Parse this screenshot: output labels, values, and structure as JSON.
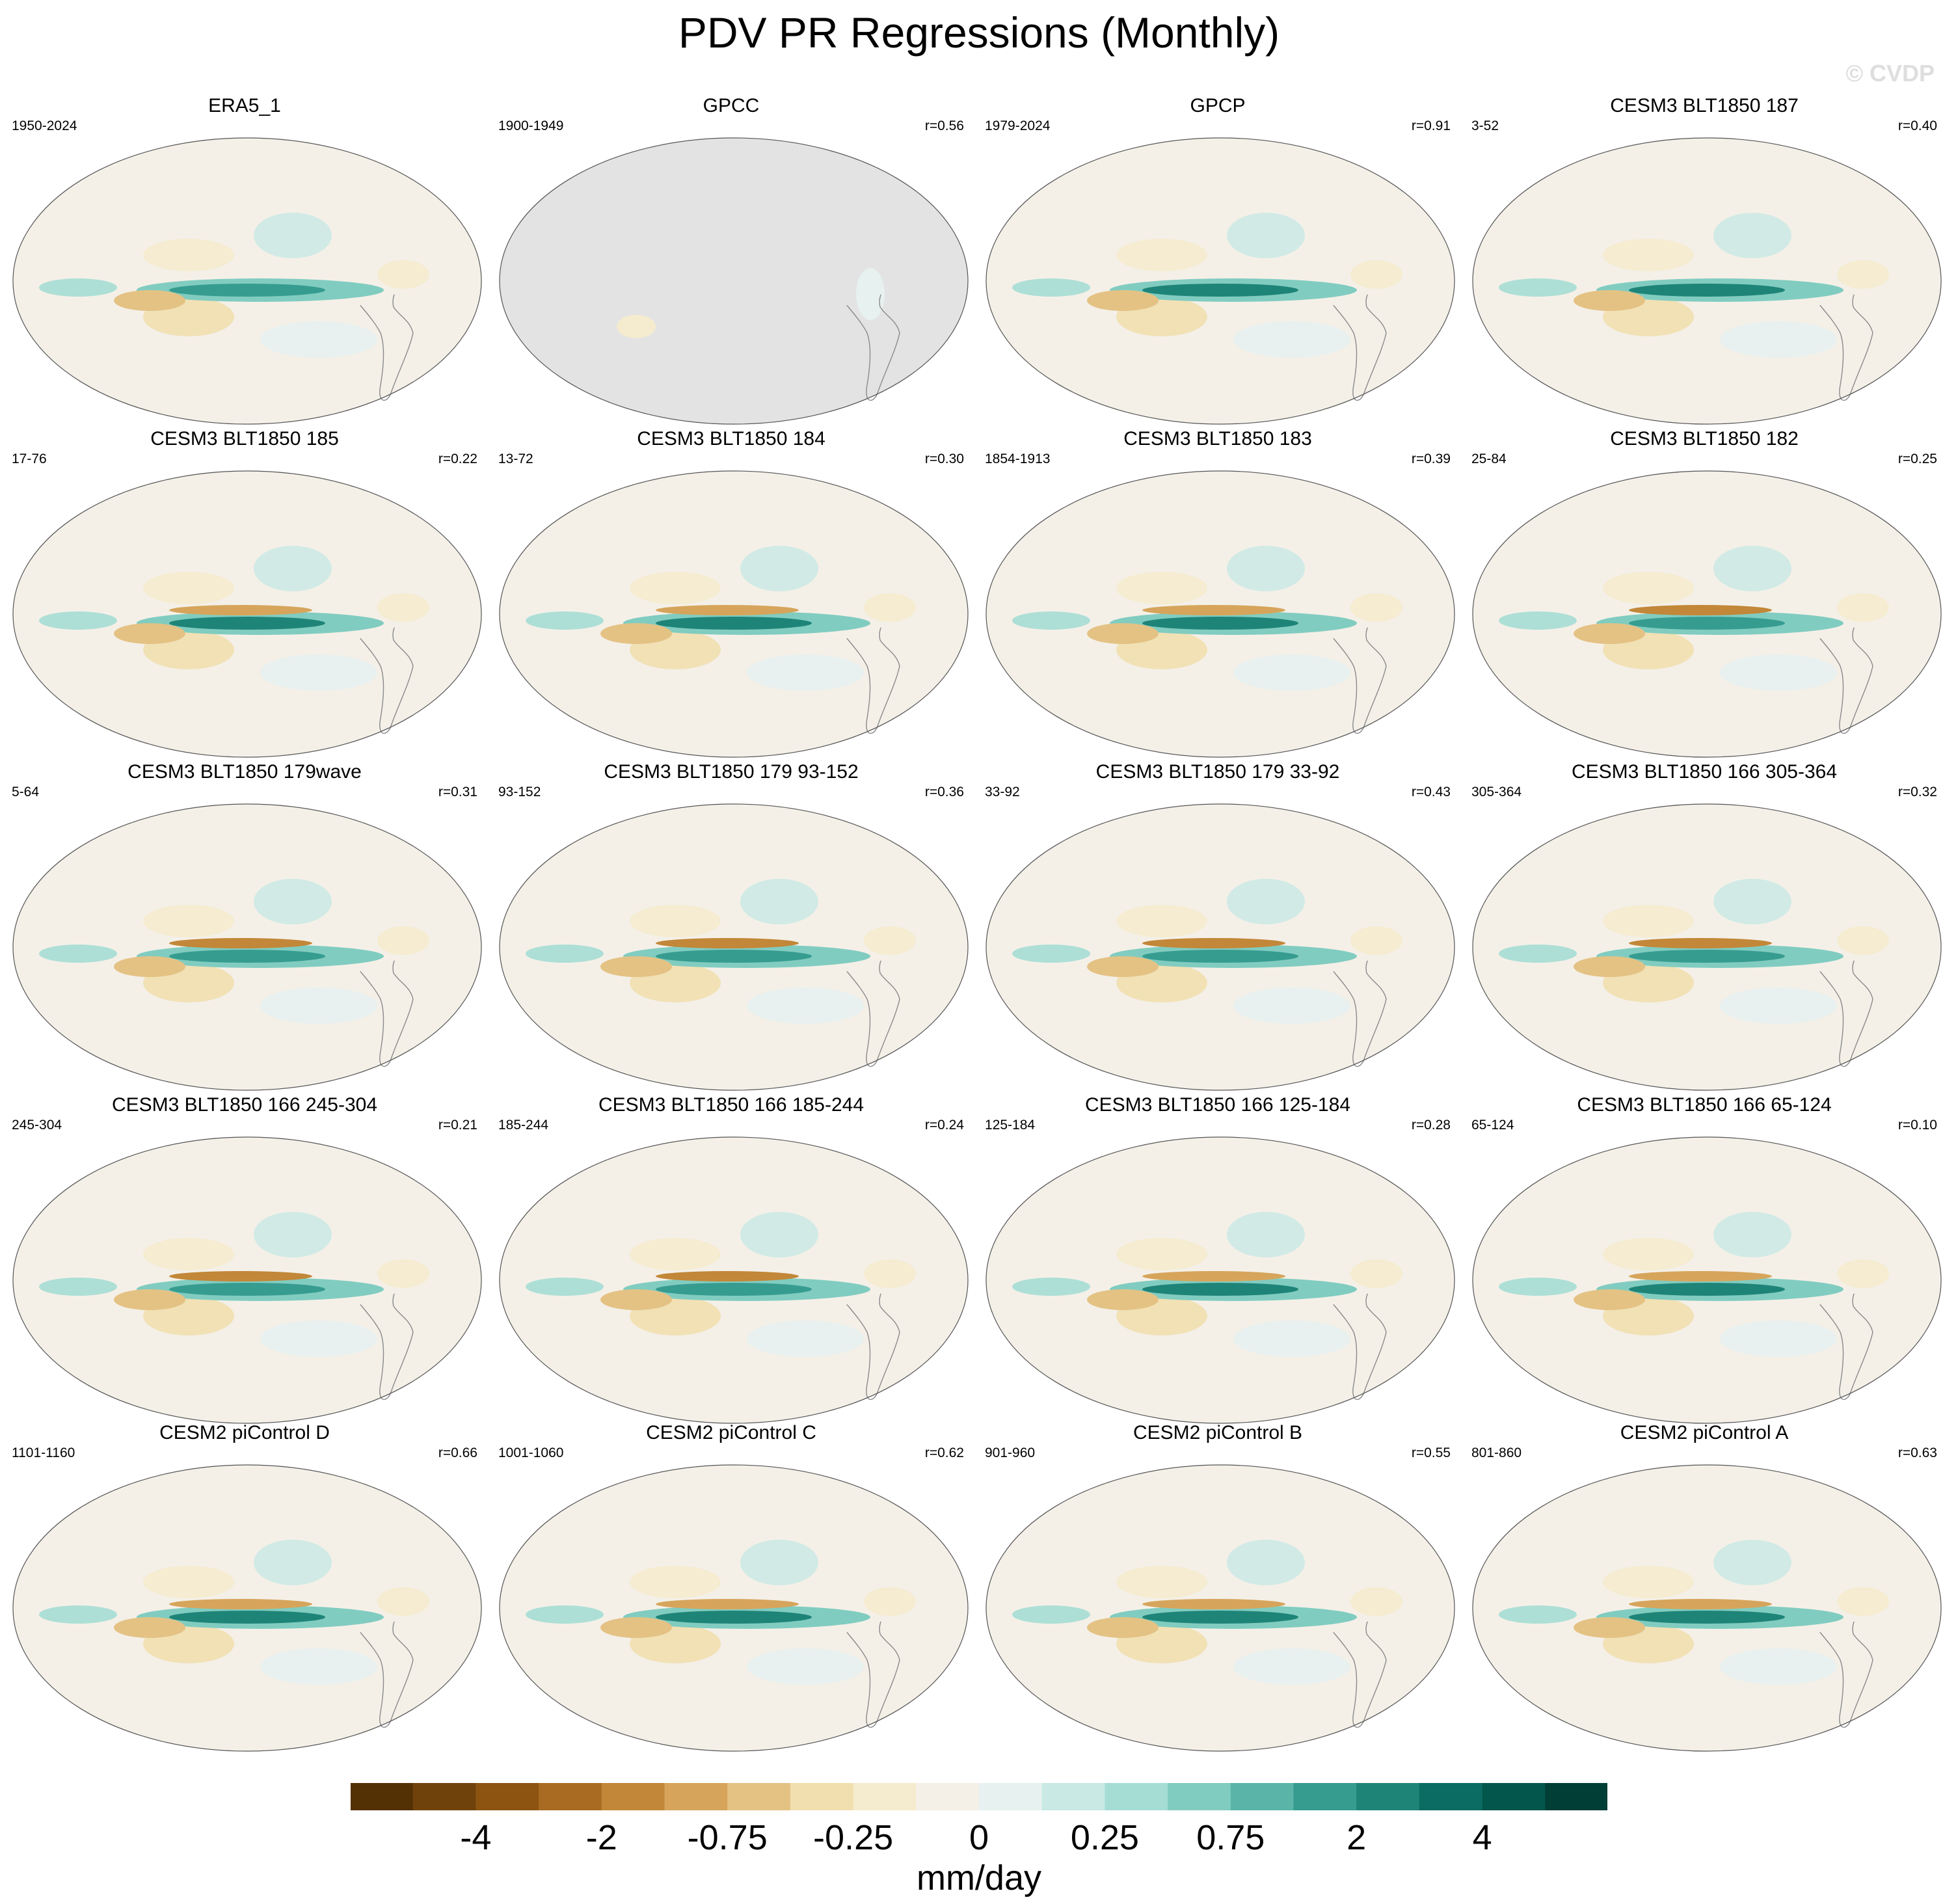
{
  "title": "PDV PR Regressions (Monthly)",
  "watermark": "© CVDP",
  "colors": {
    "ocean_missing": "#e3e3e3",
    "coast": "#8a8a8a",
    "palette": [
      "#543005",
      "#70420b",
      "#8c5410",
      "#a96b22",
      "#c28738",
      "#d6a55b",
      "#e4c284",
      "#f1dfaf",
      "#f5ebce",
      "#f4f0e8",
      "#e7f1ef",
      "#c8e9e4",
      "#a5ddd4",
      "#81ccc0",
      "#5ab5a8",
      "#379c90",
      "#1f8478",
      "#0a6c62",
      "#03564c",
      "#013e35"
    ]
  },
  "chart_data": {
    "type": "heatmap",
    "title": "PDV PR Regressions (Monthly)",
    "projection": "Robinson-like, Pacific-centered",
    "field": "precipitation regression on PDV index",
    "colorbar": {
      "units": "mm/day",
      "tick_labels": [
        "-4",
        "-2",
        "-0.75",
        "-0.25",
        "0",
        "0.25",
        "0.75",
        "2",
        "4"
      ],
      "num_bins": 20
    },
    "panels": [
      {
        "title": "ERA5_1",
        "years": "1950-2024",
        "r": ""
      },
      {
        "title": "GPCC",
        "years": "1900-1949",
        "r": "r=0.56",
        "ocean_missing": true
      },
      {
        "title": "GPCP",
        "years": "1979-2024",
        "r": "r=0.91"
      },
      {
        "title": "CESM3 BLT1850 187",
        "years": "3-52",
        "r": "r=0.40"
      },
      {
        "title": "CESM3 BLT1850 185",
        "years": "17-76",
        "r": "r=0.22"
      },
      {
        "title": "CESM3 BLT1850 184",
        "years": "13-72",
        "r": "r=0.30"
      },
      {
        "title": "CESM3 BLT1850 183",
        "years": "1854-1913",
        "r": "r=0.39"
      },
      {
        "title": "CESM3 BLT1850 182",
        "years": "25-84",
        "r": "r=0.25"
      },
      {
        "title": "CESM3 BLT1850 179wave",
        "years": "5-64",
        "r": "r=0.31"
      },
      {
        "title": "CESM3 BLT1850 179 93-152",
        "years": "93-152",
        "r": "r=0.36"
      },
      {
        "title": "CESM3 BLT1850 179 33-92",
        "years": "33-92",
        "r": "r=0.43"
      },
      {
        "title": "CESM3 BLT1850 166 305-364",
        "years": "305-364",
        "r": "r=0.32"
      },
      {
        "title": "CESM3 BLT1850 166 245-304",
        "years": "245-304",
        "r": "r=0.21"
      },
      {
        "title": "CESM3 BLT1850 166 185-244",
        "years": "185-244",
        "r": "r=0.24"
      },
      {
        "title": "CESM3 BLT1850 166 125-184",
        "years": "125-184",
        "r": "r=0.28"
      },
      {
        "title": "CESM3 BLT1850 166 65-124",
        "years": "65-124",
        "r": "r=0.10"
      },
      {
        "title": "CESM2 piControl D",
        "years": "1101-1160",
        "r": "r=0.66"
      },
      {
        "title": "CESM2 piControl C",
        "years": "1001-1060",
        "r": "r=0.62"
      },
      {
        "title": "CESM2 piControl B",
        "years": "901-960",
        "r": "r=0.55"
      },
      {
        "title": "CESM2 piControl A",
        "years": "801-860",
        "r": "r=0.63"
      }
    ]
  }
}
